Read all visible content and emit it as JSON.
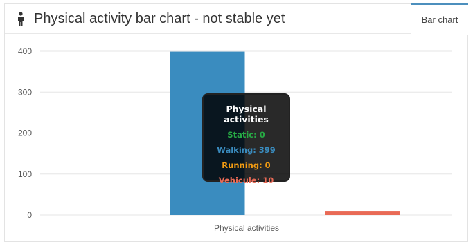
{
  "panel": {
    "icon": "person-icon",
    "title": "Physical activity bar chart - not stable yet",
    "tab_label": "Bar chart",
    "accent_color": "#4c8fbd"
  },
  "chart_data": {
    "type": "bar",
    "xlabel": "Physical activities",
    "ylim": [
      0,
      400
    ],
    "yticks": [
      0,
      100,
      200,
      300,
      400
    ],
    "grid": true,
    "series": [
      {
        "name": "Static",
        "value": 0,
        "color": "#27a844"
      },
      {
        "name": "Walking",
        "value": 399,
        "color": "#3a8cbf"
      },
      {
        "name": "Running",
        "value": 0,
        "color": "#f39c12"
      },
      {
        "name": "Vehicule",
        "value": 10,
        "color": "#e96a56"
      }
    ]
  },
  "tooltip": {
    "title": "Physical activities",
    "lines": [
      {
        "text": "Static: 0",
        "color": "#27a844"
      },
      {
        "text": "Walking: 399",
        "color": "#3a8cbf"
      },
      {
        "text": "Running: 0",
        "color": "#f39c12"
      },
      {
        "text": "Vehicule: 10",
        "color": "#e96a56"
      }
    ]
  }
}
